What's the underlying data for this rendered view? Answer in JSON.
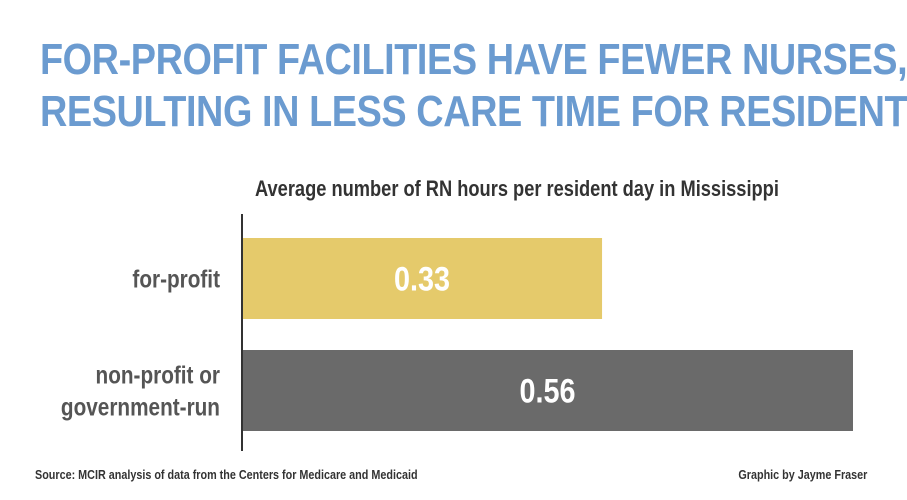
{
  "chart_data": {
    "type": "bar",
    "orientation": "horizontal",
    "title": "FOR-PROFIT FACILITIES HAVE FEWER NURSES, RESULTING IN LESS CARE TIME FOR RESIDENTS",
    "title_lines": [
      "FOR-PROFIT FACILITIES HAVE FEWER NURSES,",
      "RESULTING IN LESS CARE TIME FOR RESIDENTS"
    ],
    "subtitle": "Average number of RN hours per resident day in Mississippi",
    "categories": [
      {
        "label_lines": [
          "for-profit"
        ],
        "value": 0.33,
        "value_label": "0.33",
        "color": "#e5ca6b"
      },
      {
        "label_lines": [
          "non-profit or",
          "government-run"
        ],
        "value": 0.56,
        "value_label": "0.56",
        "color": "#6a6a6a"
      }
    ],
    "xlim": [
      0,
      0.56
    ],
    "grid": false,
    "legend": "none",
    "source": "Source: MCIR analysis of data from the Centers for Medicare and Medicaid",
    "credit": "Graphic by Jayme Fraser"
  },
  "colors": {
    "title": "#6b9bd0",
    "text": "#333333",
    "category_label": "#555555",
    "axis": "#333333",
    "value_label": "#ffffff"
  }
}
